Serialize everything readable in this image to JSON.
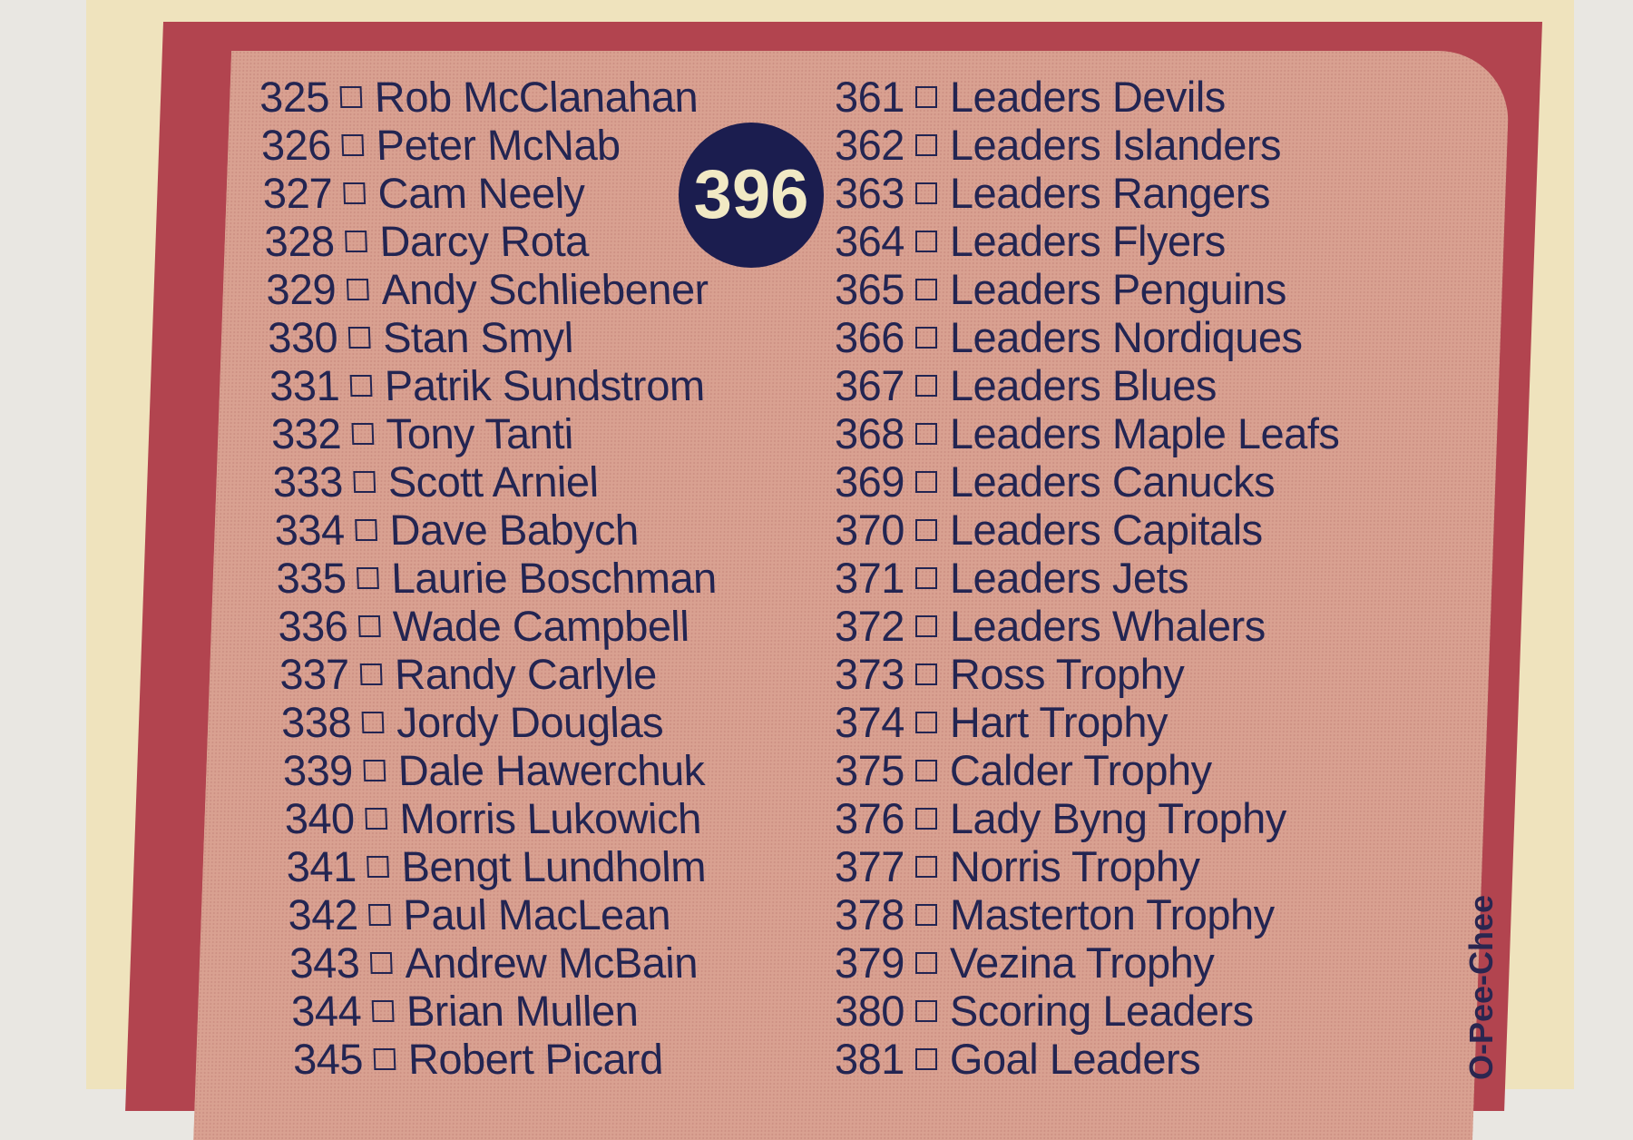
{
  "card_number": "396",
  "brand": "O-Pee-Chee",
  "colors": {
    "card_stock": "#efe3bd",
    "border": "#b2444f",
    "panel": "#d9a191",
    "ink": "#232552",
    "badge": "#1b1d4f"
  },
  "left_column": [
    {
      "num": "325",
      "name": "Rob McClanahan"
    },
    {
      "num": "326",
      "name": "Peter McNab"
    },
    {
      "num": "327",
      "name": "Cam Neely"
    },
    {
      "num": "328",
      "name": "Darcy Rota"
    },
    {
      "num": "329",
      "name": "Andy Schliebener"
    },
    {
      "num": "330",
      "name": "Stan Smyl"
    },
    {
      "num": "331",
      "name": "Patrik Sundstrom"
    },
    {
      "num": "332",
      "name": "Tony Tanti"
    },
    {
      "num": "333",
      "name": "Scott Arniel"
    },
    {
      "num": "334",
      "name": "Dave Babych"
    },
    {
      "num": "335",
      "name": "Laurie Boschman"
    },
    {
      "num": "336",
      "name": "Wade Campbell"
    },
    {
      "num": "337",
      "name": "Randy Carlyle"
    },
    {
      "num": "338",
      "name": "Jordy Douglas"
    },
    {
      "num": "339",
      "name": "Dale Hawerchuk"
    },
    {
      "num": "340",
      "name": "Morris Lukowich"
    },
    {
      "num": "341",
      "name": "Bengt Lundholm"
    },
    {
      "num": "342",
      "name": "Paul MacLean"
    },
    {
      "num": "343",
      "name": "Andrew McBain"
    },
    {
      "num": "344",
      "name": "Brian Mullen"
    },
    {
      "num": "345",
      "name": "Robert Picard"
    }
  ],
  "right_column": [
    {
      "num": "361",
      "name": "Leaders Devils"
    },
    {
      "num": "362",
      "name": "Leaders Islanders"
    },
    {
      "num": "363",
      "name": "Leaders Rangers"
    },
    {
      "num": "364",
      "name": "Leaders Flyers"
    },
    {
      "num": "365",
      "name": "Leaders Penguins"
    },
    {
      "num": "366",
      "name": "Leaders Nordiques"
    },
    {
      "num": "367",
      "name": "Leaders Blues"
    },
    {
      "num": "368",
      "name": "Leaders Maple Leafs"
    },
    {
      "num": "369",
      "name": "Leaders Canucks"
    },
    {
      "num": "370",
      "name": "Leaders Capitals"
    },
    {
      "num": "371",
      "name": "Leaders Jets"
    },
    {
      "num": "372",
      "name": "Leaders Whalers"
    },
    {
      "num": "373",
      "name": "Ross Trophy"
    },
    {
      "num": "374",
      "name": "Hart Trophy"
    },
    {
      "num": "375",
      "name": "Calder Trophy"
    },
    {
      "num": "376",
      "name": "Lady Byng Trophy"
    },
    {
      "num": "377",
      "name": "Norris Trophy"
    },
    {
      "num": "378",
      "name": "Masterton Trophy"
    },
    {
      "num": "379",
      "name": "Vezina Trophy"
    },
    {
      "num": "380",
      "name": "Scoring Leaders"
    },
    {
      "num": "381",
      "name": "Goal Leaders"
    }
  ]
}
